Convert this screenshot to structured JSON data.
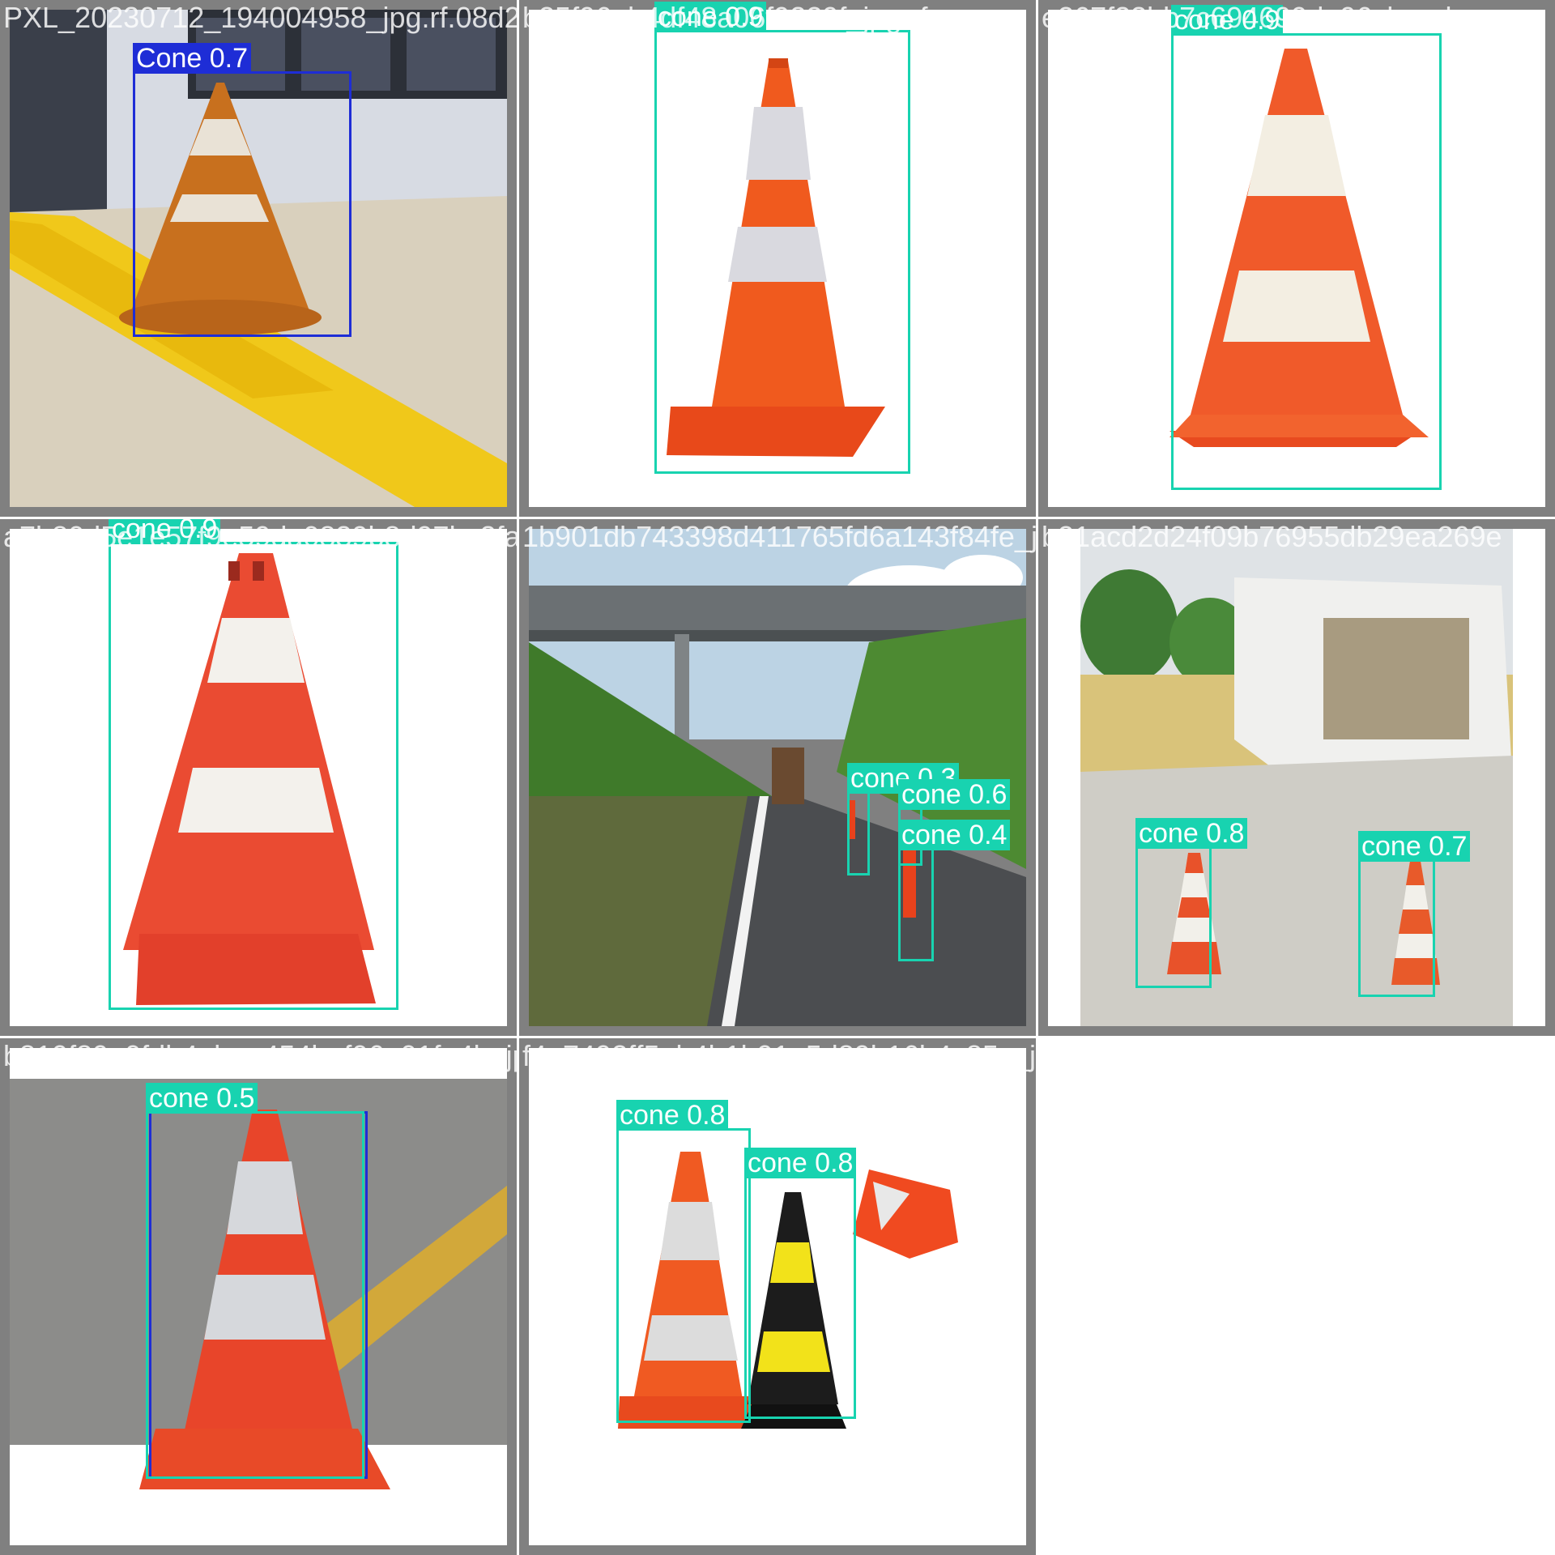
{
  "colors": {
    "cone_box": "#18d3b0",
    "Cone_box": "#1e2dd6",
    "tile_border": "#808080"
  },
  "tiles": [
    {
      "filename": "PXL_20230712_194004958_jpg.rf.08d25fc9683c",
      "detections": [
        {
          "label": "Cone 0.7"
        }
      ]
    },
    {
      "filename": "b25f96ab4df48a06f9329f_jpg.rf.",
      "detections": [
        {
          "label": "cone 0.9"
        }
      ]
    },
    {
      "filename": "e267f33bb7c694699de96cbaad",
      "detections": [
        {
          "label": "cone 0.9"
        }
      ]
    },
    {
      "filename": "a7b80d5e1e57f9e59da0839b8d97bc3fa_jpg.rf.",
      "detections": [
        {
          "label": "cone 0.9"
        }
      ]
    },
    {
      "filename": "1b901db743398d411765fd6a143f84fe_jpg.rf.",
      "detections": [
        {
          "label": "cone 0.3"
        },
        {
          "label": "cone 0.6"
        },
        {
          "label": "cone 0.4"
        }
      ]
    },
    {
      "filename": "b21acd2d24f09b76955db29ea269e",
      "detections": [
        {
          "label": "cone 0.8"
        },
        {
          "label": "cone 0.7"
        }
      ]
    },
    {
      "filename": "b819f89e0fdb4abaa454bef06a01fa4b_jpg.rf.",
      "detections": [
        {
          "label": "cone 0.5"
        }
      ]
    },
    {
      "filename": "f4e7492ff5ab4b1b91a5d89b16b4c85c_jpg.rf.",
      "detections": [
        {
          "label": "cone 0.8"
        },
        {
          "label": "cone 0.8"
        }
      ]
    }
  ]
}
